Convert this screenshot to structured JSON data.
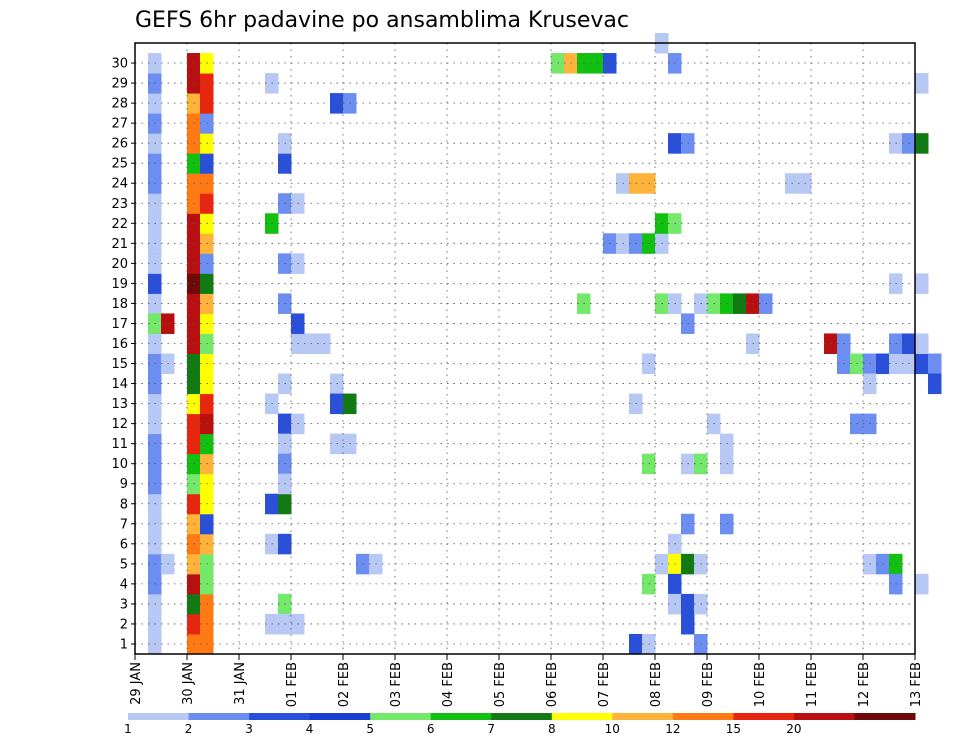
{
  "chart_data": {
    "type": "heatmap",
    "title": "GEFS 6hr padavine po ansamblima Krusevac",
    "xlabel": "",
    "ylabel": "",
    "grid": true,
    "x_ticks": [
      "29 JAN",
      "30 JAN",
      "31 JAN",
      "01 FEB",
      "02 FEB",
      "03 FEB",
      "04 FEB",
      "05 FEB",
      "06 FEB",
      "07 FEB",
      "08 FEB",
      "09 FEB",
      "10 FEB",
      "11 FEB",
      "12 FEB",
      "13 FEB"
    ],
    "y_ticks": [
      "1",
      "2",
      "3",
      "4",
      "5",
      "6",
      "7",
      "8",
      "9",
      "10",
      "11",
      "12",
      "13",
      "14",
      "15",
      "16",
      "17",
      "18",
      "19",
      "20",
      "21",
      "22",
      "23",
      "24",
      "25",
      "26",
      "27",
      "28",
      "29",
      "30"
    ],
    "time_steps_per_day": 4,
    "legend": {
      "labels": [
        "1",
        "2",
        "3",
        "4",
        "5",
        "6",
        "7",
        "8",
        "10",
        "12",
        "15",
        "20"
      ],
      "colors": [
        "#b7c8f5",
        "#6b8ef0",
        "#2a4fd8",
        "#1a3fd0",
        "#74e86a",
        "#11c011",
        "#127a12",
        "#ffff00",
        "#ffb33a",
        "#ff7a14",
        "#e8260f",
        "#b81010",
        "#6e0a0a"
      ]
    },
    "columns": {
      "c1": [
        "#b7c8f5",
        "#b7c8f5",
        "#b7c8f5",
        "#6b8ef0",
        "#6b8ef0",
        "#b7c8f5",
        "#b7c8f5",
        "#b7c8f5",
        "#6b8ef0",
        "#6b8ef0",
        "#6b8ef0",
        "#b7c8f5",
        "#b7c8f5",
        "#6b8ef0",
        "#6b8ef0",
        "#b7c8f5",
        "#b7c8f5",
        "#b7c8f5",
        "#2a4fd8",
        "#b7c8f5",
        "#6b8ef0",
        "#b7c8f5",
        "#b7c8f5",
        "#6b8ef0",
        "#6b8ef0",
        "#b7c8f5",
        "#6b8ef0",
        "#b7c8f5",
        "#6b8ef0",
        "#b7c8f5"
      ],
      "c4": [
        "#ff7a14",
        "#e8260f",
        "#127a12",
        "#b81010",
        "#ffb33a",
        "#ff7a14",
        "#ffb33a",
        "#e8260f",
        "#74e86a",
        "#11c011",
        "#e8260f",
        "#e8260f",
        "#ffff00",
        "#127a12",
        "#127a12",
        "#b81010",
        "#b81010",
        "#b81010",
        "#6e0a0a",
        "#b81010",
        "#b81010",
        "#b81010",
        "#ff7a14",
        "#ff7a14",
        "#11c011",
        "#ff7a14",
        "#ff7a14",
        "#ffb33a",
        "#b81010",
        "#b81010"
      ],
      "c5": [
        "#ff7a14",
        "#ff7a14",
        "#ff7a14",
        "#74e86a",
        "#74e86a",
        "#ffb33a",
        "#2a4fd8",
        "#ffff00",
        "#ffff00",
        "#ffb33a",
        "#11c011",
        "#b81010",
        "#e8260f",
        "#ffff00",
        "#ffff00",
        "#74e86a",
        "#ffff00",
        "#ffb33a",
        "#127a12",
        "#6b8ef0",
        "#ffb33a",
        "#ffff00",
        "#e8260f",
        "#ff7a14",
        "#2a4fd8",
        "#ffff00",
        "#6b8ef0",
        "#e8260f",
        "#e8260f",
        "#ffff00"
      ]
    },
    "cells": [
      [
        2,
        4,
        "#b7c8f5"
      ],
      [
        2,
        14,
        "#b7c8f5"
      ],
      [
        1,
        16,
        "#74e86a"
      ],
      [
        2,
        16,
        "#b81010"
      ],
      [
        1,
        20,
        "#b7c8f5"
      ],
      [
        10,
        1,
        "#b7c8f5"
      ],
      [
        10,
        5,
        "#b7c8f5"
      ],
      [
        11,
        5,
        "#2a4fd8"
      ],
      [
        10,
        7,
        "#2a4fd8"
      ],
      [
        11,
        7,
        "#127a12"
      ],
      [
        10,
        12,
        "#b7c8f5"
      ],
      [
        11,
        11,
        "#2a4fd8"
      ],
      [
        12,
        11,
        "#b7c8f5"
      ],
      [
        11,
        10,
        "#b7c8f5"
      ],
      [
        11,
        9,
        "#6b8ef0"
      ],
      [
        11,
        8,
        "#b7c8f5"
      ],
      [
        11,
        13,
        "#b7c8f5"
      ],
      [
        11,
        2,
        "#74e86a"
      ],
      [
        11,
        1,
        "#b7c8f5"
      ],
      [
        12,
        1,
        "#b7c8f5"
      ],
      [
        12,
        15,
        "#b7c8f5"
      ],
      [
        13,
        15,
        "#b7c8f5"
      ],
      [
        14,
        15,
        "#b7c8f5"
      ],
      [
        12,
        16,
        "#2a4fd8"
      ],
      [
        11,
        17,
        "#6b8ef0"
      ],
      [
        11,
        19,
        "#6b8ef0"
      ],
      [
        12,
        19,
        "#b7c8f5"
      ],
      [
        10,
        21,
        "#11c011"
      ],
      [
        11,
        22,
        "#6b8ef0"
      ],
      [
        12,
        22,
        "#b7c8f5"
      ],
      [
        11,
        24,
        "#2a4fd8"
      ],
      [
        11,
        25,
        "#b7c8f5"
      ],
      [
        10,
        28,
        "#b7c8f5"
      ],
      [
        15,
        13,
        "#b7c8f5"
      ],
      [
        15,
        12,
        "#2a4fd8"
      ],
      [
        16,
        12,
        "#127a12"
      ],
      [
        15,
        10,
        "#b7c8f5"
      ],
      [
        16,
        10,
        "#b7c8f5"
      ],
      [
        17,
        4,
        "#6b8ef0"
      ],
      [
        18,
        4,
        "#b7c8f5"
      ],
      [
        15,
        27,
        "#2a4fd8"
      ],
      [
        16,
        27,
        "#6b8ef0"
      ],
      [
        32,
        29,
        "#74e86a"
      ],
      [
        33,
        29,
        "#ffb33a"
      ],
      [
        34,
        29,
        "#11c011"
      ],
      [
        35,
        29,
        "#11c011"
      ],
      [
        36,
        29,
        "#2a4fd8"
      ],
      [
        34,
        17,
        "#74e86a"
      ],
      [
        36,
        20,
        "#6b8ef0"
      ],
      [
        37,
        20,
        "#b7c8f5"
      ],
      [
        37,
        23,
        "#b7c8f5"
      ],
      [
        38,
        23,
        "#ffb33a"
      ],
      [
        39,
        23,
        "#ffb33a"
      ],
      [
        38,
        20,
        "#6b8ef0"
      ],
      [
        39,
        20,
        "#11c011"
      ],
      [
        40,
        20,
        "#b7c8f5"
      ],
      [
        40,
        21,
        "#11c011"
      ],
      [
        41,
        21,
        "#74e86a"
      ],
      [
        40,
        17,
        "#74e86a"
      ],
      [
        41,
        17,
        "#b7c8f5"
      ],
      [
        42,
        16,
        "#6b8ef0"
      ],
      [
        40,
        30,
        "#b7c8f5"
      ],
      [
        41,
        29,
        "#6b8ef0"
      ],
      [
        41,
        25,
        "#2a4fd8"
      ],
      [
        42,
        25,
        "#6b8ef0"
      ],
      [
        43,
        17,
        "#b7c8f5"
      ],
      [
        44,
        17,
        "#74e86a"
      ],
      [
        45,
        17,
        "#11c011"
      ],
      [
        46,
        17,
        "#127a12"
      ],
      [
        47,
        17,
        "#b81010"
      ],
      [
        48,
        17,
        "#6b8ef0"
      ],
      [
        47,
        15,
        "#b7c8f5"
      ],
      [
        44,
        11,
        "#b7c8f5"
      ],
      [
        45,
        10,
        "#b7c8f5"
      ],
      [
        45,
        9,
        "#b7c8f5"
      ],
      [
        39,
        14,
        "#b7c8f5"
      ],
      [
        38,
        12,
        "#b7c8f5"
      ],
      [
        39,
        9,
        "#74e86a"
      ],
      [
        42,
        9,
        "#b7c8f5"
      ],
      [
        43,
        9,
        "#74e86a"
      ],
      [
        42,
        6,
        "#6b8ef0"
      ],
      [
        45,
        6,
        "#6b8ef0"
      ],
      [
        41,
        5,
        "#b7c8f5"
      ],
      [
        40,
        4,
        "#b7c8f5"
      ],
      [
        41,
        4,
        "#ffff00"
      ],
      [
        42,
        4,
        "#127a12"
      ],
      [
        43,
        4,
        "#b7c8f5"
      ],
      [
        39,
        3,
        "#74e86a"
      ],
      [
        41,
        3,
        "#2a4fd8"
      ],
      [
        41,
        2,
        "#b7c8f5"
      ],
      [
        42,
        2,
        "#2a4fd8"
      ],
      [
        43,
        2,
        "#b7c8f5"
      ],
      [
        42,
        1,
        "#2a4fd8"
      ],
      [
        38,
        0,
        "#2a4fd8"
      ],
      [
        39,
        0,
        "#b7c8f5"
      ],
      [
        43,
        0,
        "#6b8ef0"
      ],
      [
        50,
        23,
        "#b7c8f5"
      ],
      [
        51,
        23,
        "#b7c8f5"
      ],
      [
        53,
        15,
        "#b81010"
      ],
      [
        54,
        15,
        "#6b8ef0"
      ],
      [
        54,
        14,
        "#6b8ef0"
      ],
      [
        55,
        14,
        "#74e86a"
      ],
      [
        56,
        14,
        "#6b8ef0"
      ],
      [
        57,
        14,
        "#2a4fd8"
      ],
      [
        58,
        14,
        "#b7c8f5"
      ],
      [
        59,
        14,
        "#b7c8f5"
      ],
      [
        60,
        14,
        "#2a4fd8"
      ],
      [
        58,
        15,
        "#6b8ef0"
      ],
      [
        59,
        15,
        "#2a4fd8"
      ],
      [
        60,
        15,
        "#b7c8f5"
      ],
      [
        61,
        14,
        "#6b8ef0"
      ],
      [
        61,
        13,
        "#2a4fd8"
      ],
      [
        56,
        13,
        "#b7c8f5"
      ],
      [
        55,
        11,
        "#6b8ef0"
      ],
      [
        56,
        11,
        "#6b8ef0"
      ],
      [
        58,
        18,
        "#b7c8f5"
      ],
      [
        60,
        18,
        "#b7c8f5"
      ],
      [
        58,
        25,
        "#b7c8f5"
      ],
      [
        59,
        25,
        "#6b8ef0"
      ],
      [
        60,
        25,
        "#127a12"
      ],
      [
        60,
        28,
        "#b7c8f5"
      ],
      [
        56,
        4,
        "#b7c8f5"
      ],
      [
        57,
        4,
        "#6b8ef0"
      ],
      [
        58,
        4,
        "#11c011"
      ],
      [
        58,
        3,
        "#6b8ef0"
      ],
      [
        60,
        3,
        "#b7c8f5"
      ]
    ]
  }
}
